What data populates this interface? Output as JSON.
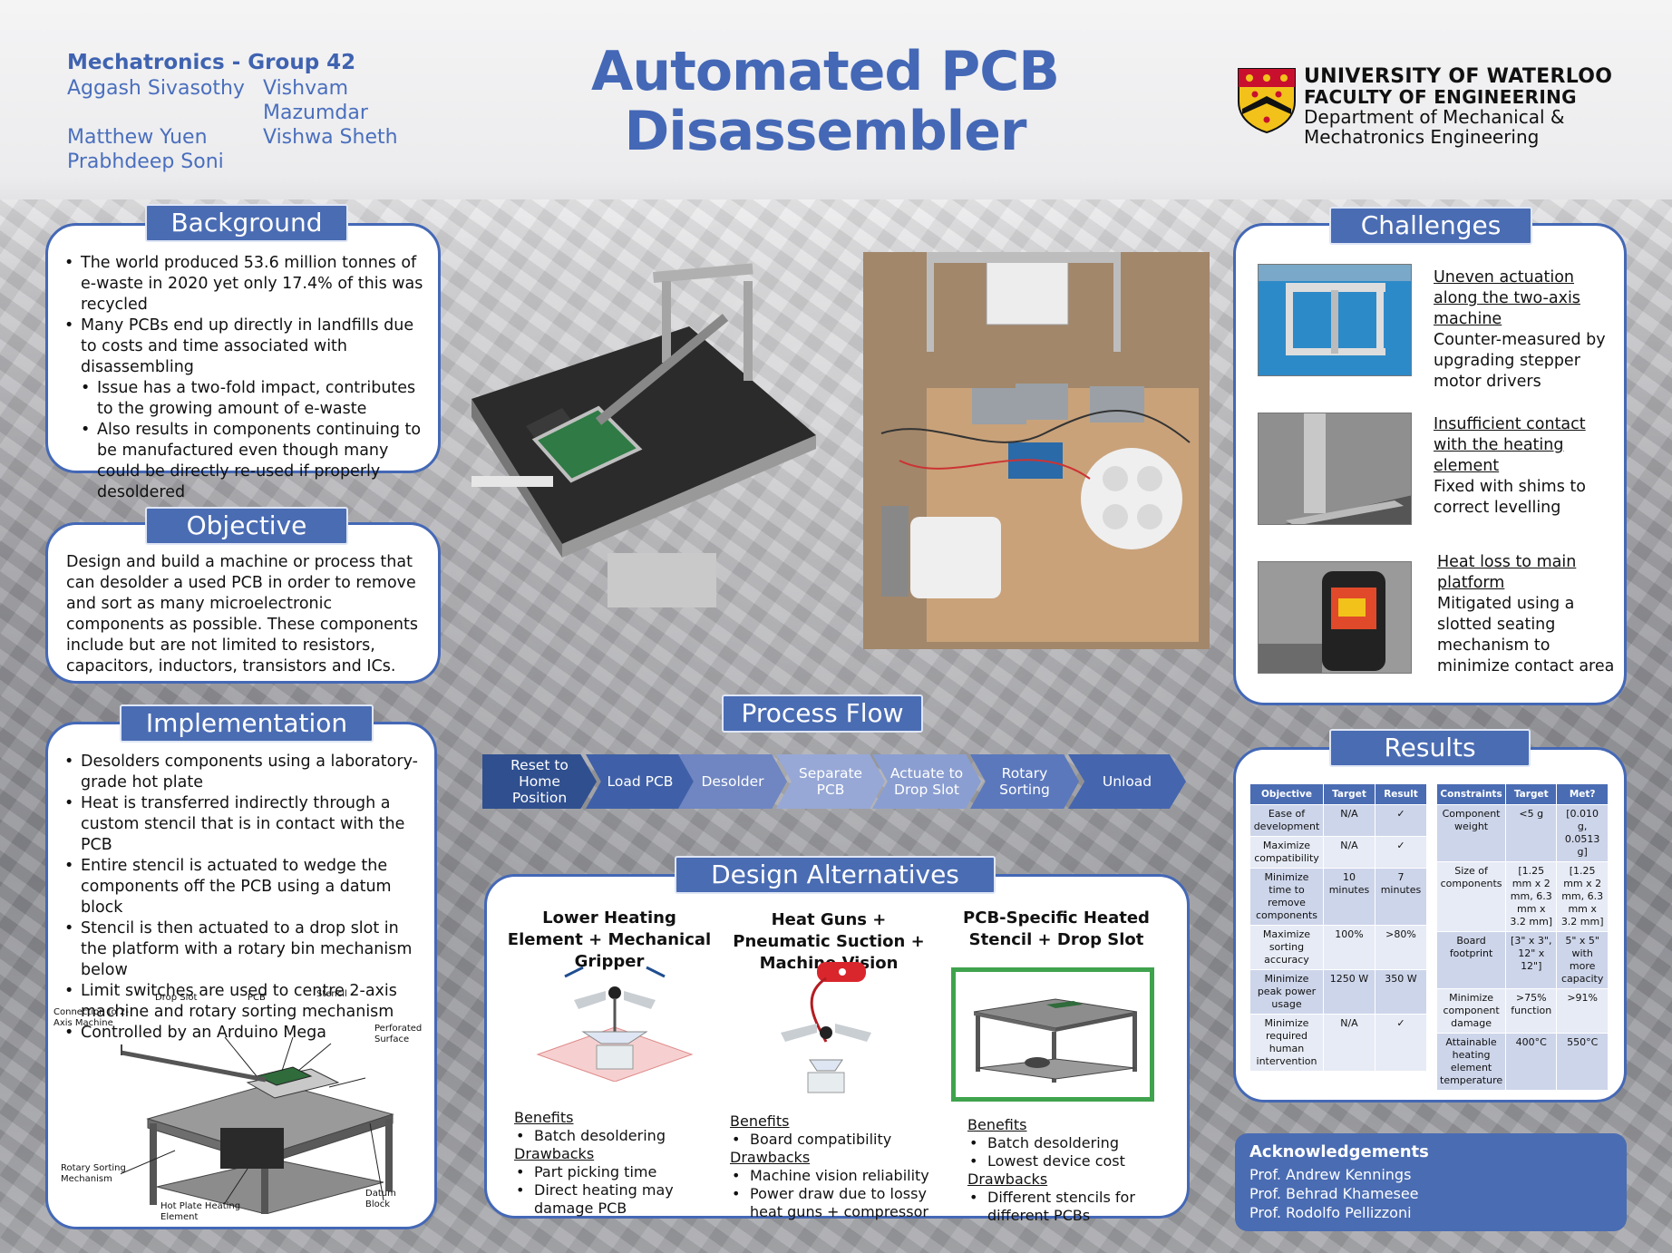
{
  "header": {
    "group": "Mechatronics - Group 42",
    "authors": [
      "Aggash Sivasothy",
      "Vishvam Mazumdar",
      "Matthew Yuen",
      "Vishwa Sheth",
      "Prabhdeep Soni",
      ""
    ],
    "title_line1": "Automated PCB",
    "title_line2": "Disassembler",
    "university": "UNIVERSITY OF WATERLOO",
    "faculty": "FACULTY OF ENGINEERING",
    "department_line1": "Department of Mechanical &",
    "department_line2": "Mechatronics Engineering"
  },
  "background": {
    "title": "Background",
    "bullets": [
      {
        "text": "The world produced 53.6 million tonnes of e-waste in 2020 yet only 17.4% of this was recycled",
        "sub": false
      },
      {
        "text": "Many PCBs end up directly in landfills due to costs and time associated with disassembling",
        "sub": false
      },
      {
        "text": "Issue has a two-fold impact, contributes to the growing amount of e-waste",
        "sub": true
      },
      {
        "text": "Also results in components continuing to be manufactured even though many could be directly re-used if properly desoldered",
        "sub": true
      }
    ]
  },
  "objective": {
    "title": "Objective",
    "text": "Design and build a machine or process that can desolder a used PCB in order to remove and sort as many microelectronic components as possible. These components include but are not limited to resistors, capacitors, inductors, transistors and ICs."
  },
  "implementation": {
    "title": "Implementation",
    "bullets": [
      "Desolders components using a laboratory-grade hot plate",
      "Heat is transferred indirectly through a custom stencil that is in contact with the PCB",
      "Entire stencil is actuated to wedge the components off the PCB using a datum block",
      "Stencil is then actuated to a drop slot in the platform with a rotary bin mechanism below",
      "Limit switches are used to centre 2-axis machine and rotary sorting mechanism",
      "Controlled by an Arduino Mega"
    ],
    "diagram_labels": {
      "connection": "Connection to 2-Axis Machine",
      "drop_slot": "Drop Slot",
      "pcb": "PCB",
      "stencil": "Stencil",
      "perforated": "Perforated Surface",
      "rotary": "Rotary Sorting Mechanism",
      "hot_plate": "Hot Plate Heating Element",
      "datum": "Datum Block"
    }
  },
  "process_flow": {
    "title": "Process Flow",
    "steps": [
      "Reset to Home Position",
      "Load PCB",
      "Desolder",
      "Separate PCB",
      "Actuate to Drop Slot",
      "Rotary Sorting",
      "Unload"
    ],
    "colors": [
      "#2f4f8f",
      "#3f60a8",
      "#6f86c2",
      "#97a8d6",
      "#8b9ed1",
      "#5b78bd",
      "#4565ae"
    ]
  },
  "design_alternatives": {
    "title": "Design Alternatives",
    "options": [
      {
        "heading": "Lower Heating Element + Mechanical Gripper",
        "benefits_label": "Benefits",
        "benefits": [
          "Batch desoldering"
        ],
        "drawbacks_label": "Drawbacks",
        "drawbacks": [
          "Part picking time",
          "Direct heating may damage PCB"
        ]
      },
      {
        "heading": "Heat Guns + Pneumatic Suction + Machine Vision",
        "benefits_label": "Benefits",
        "benefits": [
          "Board compatibility"
        ],
        "drawbacks_label": "Drawbacks",
        "drawbacks": [
          "Machine vision reliability",
          "Power draw due to lossy heat guns + compressor"
        ]
      },
      {
        "heading": "PCB-Specific Heated Stencil + Drop Slot",
        "benefits_label": "Benefits",
        "benefits": [
          "Batch desoldering",
          "Lowest device cost"
        ],
        "drawbacks_label": "Drawbacks",
        "drawbacks": [
          "Different stencils for different PCBs"
        ]
      }
    ]
  },
  "challenges": {
    "title": "Challenges",
    "items": [
      {
        "heading": "Uneven actuation along the two-axis machine",
        "text": "Counter-measured by upgrading stepper motor drivers"
      },
      {
        "heading": "Insufficient contact with the heating element",
        "text": "Fixed with shims to correct levelling"
      },
      {
        "heading": "Heat loss to main platform",
        "text": "Mitigated using a slotted seating mechanism to minimize contact area"
      }
    ]
  },
  "results": {
    "title": "Results",
    "table1": {
      "headers": [
        "Objective",
        "Target",
        "Result"
      ],
      "rows": [
        [
          "Ease of development",
          "N/A",
          "✓"
        ],
        [
          "Maximize compatibility",
          "N/A",
          "✓"
        ],
        [
          "Minimize time to remove components",
          "10 minutes",
          "7 minutes"
        ],
        [
          "Maximize sorting accuracy",
          "100%",
          ">80%"
        ],
        [
          "Minimize peak power usage",
          "1250 W",
          "350 W"
        ],
        [
          "Minimize required human intervention",
          "N/A",
          "✓"
        ]
      ]
    },
    "table2": {
      "headers": [
        "Constraints",
        "Target",
        "Met?"
      ],
      "rows": [
        [
          "Component weight",
          "<5 g",
          "[0.010 g, 0.0513 g]"
        ],
        [
          "Size of components",
          "[1.25 mm x 2 mm, 6.3 mm x 3.2 mm]",
          "[1.25 mm x 2 mm, 6.3 mm x 3.2 mm]"
        ],
        [
          "Board footprint",
          "[3\" x 3\", 12\" x 12\"]",
          "5\" x 5\" with more capacity"
        ],
        [
          "Minimize component damage",
          ">75% function",
          ">91%"
        ],
        [
          "Attainable heating element temperature",
          "400°C",
          "550°C"
        ]
      ]
    }
  },
  "acknowledgements": {
    "title": "Acknowledgements",
    "names": [
      "Prof. Andrew Kennings",
      "Prof. Behrad Khamesee",
      "Prof. Rodolfo Pellizzoni"
    ]
  },
  "colors": {
    "accent": "#4468b6",
    "tab": "#4a6cb3",
    "highlight_box": "#3fa34d"
  }
}
